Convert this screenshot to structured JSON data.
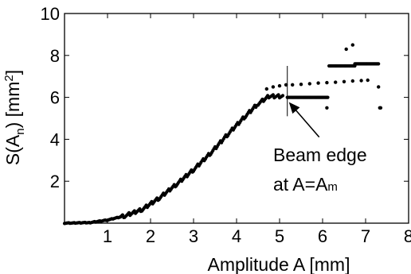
{
  "chart_data": {
    "type": "scatter",
    "title": "",
    "xlabel": "Amplitude A [mm]",
    "ylabel": {
      "pre": "S(A",
      "sub": "n",
      "mid": ") [mm",
      "sup": "2",
      "post": "]"
    },
    "xlim": [
      0,
      8
    ],
    "ylim": [
      0,
      10
    ],
    "xticks": [
      1,
      2,
      3,
      4,
      5,
      6,
      7,
      8
    ],
    "yticks": [
      2,
      4,
      6,
      8,
      10
    ],
    "grid": false,
    "marker_color": "#000000",
    "annotation": {
      "line1": "Beam edge",
      "line2_prefix": "at A=A",
      "line2_sub": "m",
      "vline_x": 5.18,
      "vline_y_range": [
        5.1,
        7.5
      ],
      "arrow_to": [
        5.18,
        6.0
      ]
    },
    "curve": [
      [
        0.0,
        0.0
      ],
      [
        0.6,
        0.03
      ],
      [
        1.0,
        0.15
      ],
      [
        1.4,
        0.35
      ],
      [
        1.8,
        0.65
      ],
      [
        2.2,
        1.2
      ],
      [
        2.6,
        1.85
      ],
      [
        3.0,
        2.55
      ],
      [
        3.4,
        3.35
      ],
      [
        3.8,
        4.25
      ],
      [
        4.2,
        5.1
      ],
      [
        4.5,
        5.7
      ],
      [
        4.75,
        6.05
      ],
      [
        5.1,
        6.05
      ]
    ],
    "segments": [
      {
        "x": [
          5.18,
          6.12
        ],
        "y": 6.0
      },
      {
        "x": [
          6.15,
          6.75
        ],
        "y": 7.5
      },
      {
        "x": [
          6.75,
          7.3
        ],
        "y": 7.6
      }
    ],
    "points": [
      [
        4.7,
        6.4
      ],
      [
        4.85,
        6.5
      ],
      [
        5.0,
        6.55
      ],
      [
        5.15,
        6.6
      ],
      [
        5.3,
        6.6
      ],
      [
        5.5,
        6.62
      ],
      [
        5.7,
        6.65
      ],
      [
        5.9,
        6.68
      ],
      [
        6.1,
        6.7
      ],
      [
        6.3,
        6.72
      ],
      [
        6.5,
        6.75
      ],
      [
        6.7,
        6.78
      ],
      [
        6.9,
        6.8
      ],
      [
        7.05,
        6.82
      ],
      [
        6.1,
        5.5
      ],
      [
        6.55,
        8.3
      ],
      [
        6.7,
        8.5
      ],
      [
        7.3,
        6.5
      ],
      [
        7.33,
        5.5
      ],
      [
        7.35,
        5.5
      ]
    ]
  }
}
